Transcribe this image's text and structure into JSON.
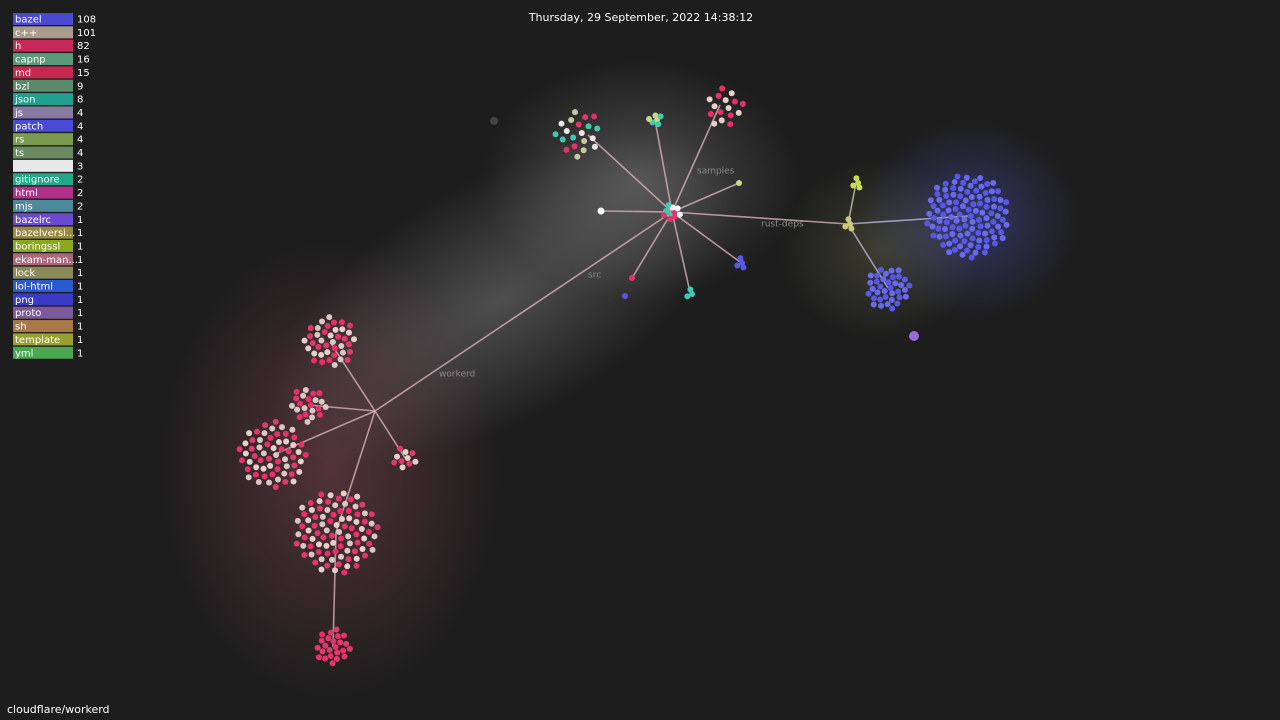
{
  "date": "Thursday, 29 September, 2022 14:38:12",
  "repo": "cloudflare/workerd",
  "dir_labels": [
    "samples",
    "rust-deps",
    "src",
    "workerd"
  ],
  "legend": [
    {
      "name": "bazel",
      "count": 108,
      "color": "#4a4ad0"
    },
    {
      "name": "c++",
      "count": 101,
      "color": "#a89c8c"
    },
    {
      "name": "h",
      "count": 82,
      "color": "#c8285a"
    },
    {
      "name": "capnp",
      "count": 16,
      "color": "#5a9a78"
    },
    {
      "name": "md",
      "count": 15,
      "color": "#c82850"
    },
    {
      "name": "bzl",
      "count": 9,
      "color": "#5a8a6a"
    },
    {
      "name": "json",
      "count": 8,
      "color": "#20a090"
    },
    {
      "name": "js",
      "count": 4,
      "color": "#8a7aa0"
    },
    {
      "name": "patch",
      "count": 4,
      "color": "#4a4ad8"
    },
    {
      "name": "rs",
      "count": 4,
      "color": "#7a9a50"
    },
    {
      "name": "ts",
      "count": 4,
      "color": "#6a8a60"
    },
    {
      "count": 3,
      "color": "#e8e8e8"
    },
    {
      "name": "gitignore",
      "count": 2,
      "color": "#20a888"
    },
    {
      "name": "html",
      "count": 2,
      "color": "#b0308a"
    },
    {
      "name": "mjs",
      "count": 2,
      "color": "#4a8a9a"
    },
    {
      "name": "bazelrc",
      "count": 1,
      "color": "#6a4ad0"
    },
    {
      "name": "bazelversi...",
      "count": 1,
      "color": "#9a8a40"
    },
    {
      "name": "boringssl",
      "count": 1,
      "color": "#8aa820"
    },
    {
      "name": "ekam-man...",
      "count": 1,
      "color": "#a86a7a"
    },
    {
      "name": "lock",
      "count": 1,
      "color": "#8a8a5a"
    },
    {
      "name": "lol-html",
      "count": 1,
      "color": "#2a5ad0"
    },
    {
      "name": "png",
      "count": 1,
      "color": "#3a3ac8"
    },
    {
      "name": "proto",
      "count": 1,
      "color": "#7a5a9a"
    },
    {
      "name": "sh",
      "count": 1,
      "color": "#a8784a"
    },
    {
      "name": "template",
      "count": 1,
      "color": "#9aa030"
    },
    {
      "name": "yml",
      "count": 1,
      "color": "#4aa850"
    }
  ]
}
